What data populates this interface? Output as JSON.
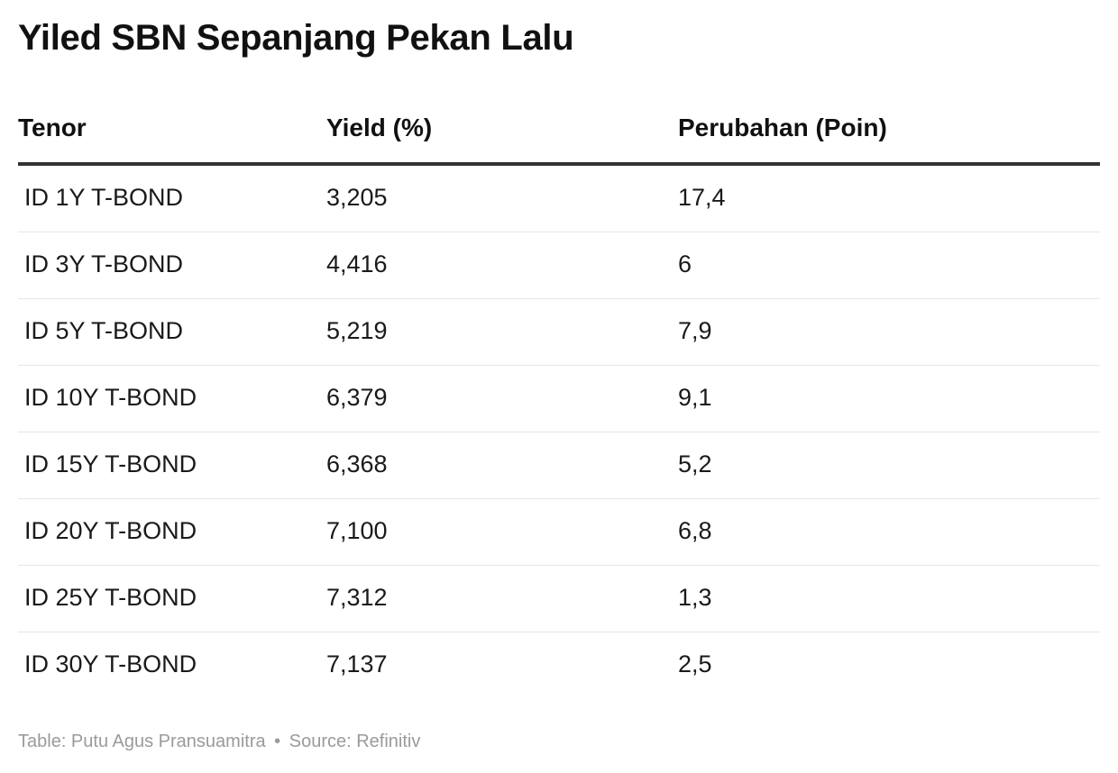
{
  "title": "Yiled SBN Sepanjang Pekan Lalu",
  "chart_data": {
    "type": "table",
    "title": "Yiled SBN Sepanjang Pekan Lalu",
    "columns": [
      "Tenor",
      "Yield (%)",
      "Perubahan (Poin)"
    ],
    "rows": [
      [
        "ID 1Y T-BOND",
        "3,205",
        "17,4"
      ],
      [
        "ID 3Y T-BOND",
        "4,416",
        "6"
      ],
      [
        "ID 5Y T-BOND",
        "5,219",
        "7,9"
      ],
      [
        "ID 10Y T-BOND",
        "6,379",
        "9,1"
      ],
      [
        "ID 15Y T-BOND",
        "6,368",
        "5,2"
      ],
      [
        "ID 20Y T-BOND",
        "7,100",
        "6,8"
      ],
      [
        "ID 25Y T-BOND",
        "7,312",
        "1,3"
      ],
      [
        "ID 30Y T-BOND",
        "7,137",
        "2,5"
      ]
    ]
  },
  "footer": {
    "table_credit": "Table: Putu Agus Pransuamitra",
    "separator": "•",
    "source": "Source: Refinitiv"
  }
}
